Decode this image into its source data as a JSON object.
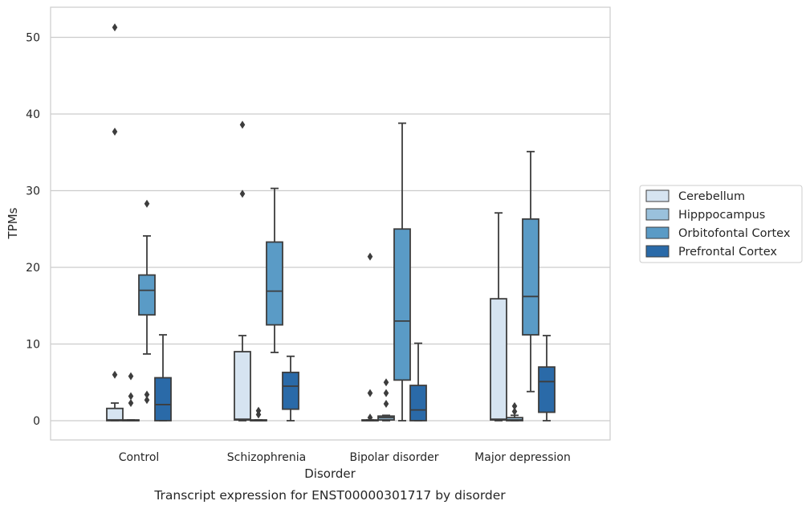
{
  "caption": "Transcript expression for ENST00000301717 by disorder",
  "chart_data": {
    "type": "box",
    "xlabel": "Disorder",
    "ylabel": "TPMs",
    "categories": [
      "Control",
      "Schizophrenia",
      "Bipolar disorder",
      "Major depression"
    ],
    "ylim": [
      -2.5,
      54
    ],
    "yticks": [
      0,
      10,
      20,
      30,
      40,
      50
    ],
    "grid": "horizontal",
    "legend_placement": "right",
    "series": [
      {
        "name": "Cerebellum",
        "color": "#d6e4f1",
        "boxes": [
          {
            "whislo": 0,
            "q1": 0,
            "med": 0.1,
            "q3": 1.6,
            "whishi": 2.3,
            "fliers": [
              6.0,
              37.7,
              51.3
            ]
          },
          {
            "whislo": 0,
            "q1": 0.1,
            "med": 0.2,
            "q3": 9.0,
            "whishi": 11.1,
            "fliers": [
              29.6,
              38.6
            ]
          },
          {
            "whislo": 0,
            "q1": 0,
            "med": 0,
            "q3": 0.1,
            "whishi": 0.1,
            "fliers": [
              0.4,
              3.6,
              21.4
            ]
          },
          {
            "whislo": 0,
            "q1": 0.1,
            "med": 0.2,
            "q3": 15.9,
            "whishi": 27.1,
            "fliers": []
          }
        ]
      },
      {
        "name": "Hipppocampus",
        "color": "#9ac1dc",
        "boxes": [
          {
            "whislo": 0,
            "q1": 0,
            "med": 0,
            "q3": 0.1,
            "whishi": 0.1,
            "fliers": [
              2.3,
              3.2,
              5.8
            ]
          },
          {
            "whislo": 0,
            "q1": 0,
            "med": 0,
            "q3": 0.1,
            "whishi": 0.1,
            "fliers": [
              0.8,
              1.3
            ]
          },
          {
            "whislo": 0,
            "q1": 0.1,
            "med": 0.4,
            "q3": 0.6,
            "whishi": 0.7,
            "fliers": [
              2.2,
              3.6,
              5.0
            ]
          },
          {
            "whislo": 0,
            "q1": 0,
            "med": 0.1,
            "q3": 0.4,
            "whishi": 0.7,
            "fliers": [
              1.2,
              1.9
            ]
          }
        ]
      },
      {
        "name": "Orbitofontal Cortex",
        "color": "#5a9bc6",
        "boxes": [
          {
            "whislo": 8.7,
            "q1": 13.8,
            "med": 17.0,
            "q3": 19.0,
            "whishi": 24.1,
            "fliers": [
              2.7,
              3.4,
              28.3
            ]
          },
          {
            "whislo": 8.9,
            "q1": 12.5,
            "med": 16.9,
            "q3": 23.3,
            "whishi": 30.3,
            "fliers": []
          },
          {
            "whislo": 0,
            "q1": 5.3,
            "med": 13.0,
            "q3": 25.0,
            "whishi": 38.8,
            "fliers": []
          },
          {
            "whislo": 3.8,
            "q1": 11.2,
            "med": 16.2,
            "q3": 26.3,
            "whishi": 35.1,
            "fliers": []
          }
        ]
      },
      {
        "name": "Prefrontal Cortex",
        "color": "#2a6aa8",
        "boxes": [
          {
            "whislo": 0,
            "q1": 0,
            "med": 2.1,
            "q3": 5.6,
            "whishi": 11.2,
            "fliers": []
          },
          {
            "whislo": 0,
            "q1": 1.5,
            "med": 4.5,
            "q3": 6.3,
            "whishi": 8.4,
            "fliers": []
          },
          {
            "whislo": 0,
            "q1": 0,
            "med": 1.4,
            "q3": 4.6,
            "whishi": 10.1,
            "fliers": []
          },
          {
            "whislo": 0,
            "q1": 1.1,
            "med": 5.1,
            "q3": 7.0,
            "whishi": 11.1,
            "fliers": []
          }
        ]
      }
    ]
  }
}
